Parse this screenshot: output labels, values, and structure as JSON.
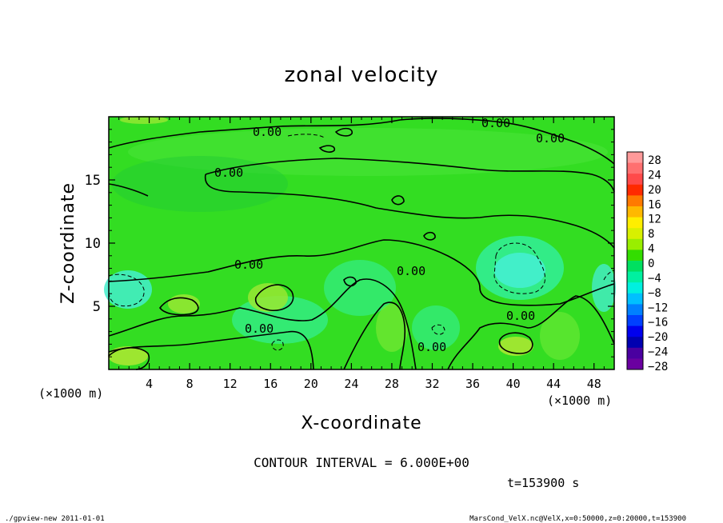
{
  "chart_data": {
    "type": "heatmap",
    "title": "zonal velocity",
    "xlabel": "X-coordinate",
    "ylabel": "Z-coordinate",
    "x_unit": "(×1000 m)",
    "y_unit": "(×1000 m)",
    "xlim": [
      0,
      50
    ],
    "ylim": [
      0,
      20
    ],
    "x_ticks": [
      4,
      8,
      12,
      16,
      20,
      24,
      28,
      32,
      36,
      40,
      44,
      48
    ],
    "y_ticks": [
      5,
      10,
      15
    ],
    "contour_label": "0.00",
    "contour_interval_text": "CONTOUR INTERVAL = 6.000E+00",
    "time_text": "t=153900 s",
    "colorbar": {
      "ticks": [
        28,
        24,
        20,
        16,
        12,
        8,
        4,
        0,
        -4,
        -8,
        -12,
        -16,
        -20,
        -24,
        -28
      ],
      "tick_labels": [
        "28",
        "24",
        "20",
        "16",
        "12",
        "8",
        "4",
        "0",
        "−4",
        "−8",
        "−12",
        "−16",
        "−20",
        "−24",
        "−28"
      ],
      "colors": [
        "#ff9a9a",
        "#ff7070",
        "#ff4a4a",
        "#ff2a00",
        "#ff7a00",
        "#ffb800",
        "#ffee00",
        "#d8f000",
        "#99ee00",
        "#33dd00",
        "#00e060",
        "#00f0a0",
        "#00f0e0",
        "#00c0ff",
        "#0080ff",
        "#0040ff",
        "#0000ee",
        "#0000b0",
        "#4a00a0",
        "#6a00a0"
      ]
    }
  },
  "footer": {
    "left": "./gpview-new  2011-01-01",
    "right": "MarsCond_VelX.nc@VelX,x=0:50000,z=0:20000,t=153900"
  }
}
